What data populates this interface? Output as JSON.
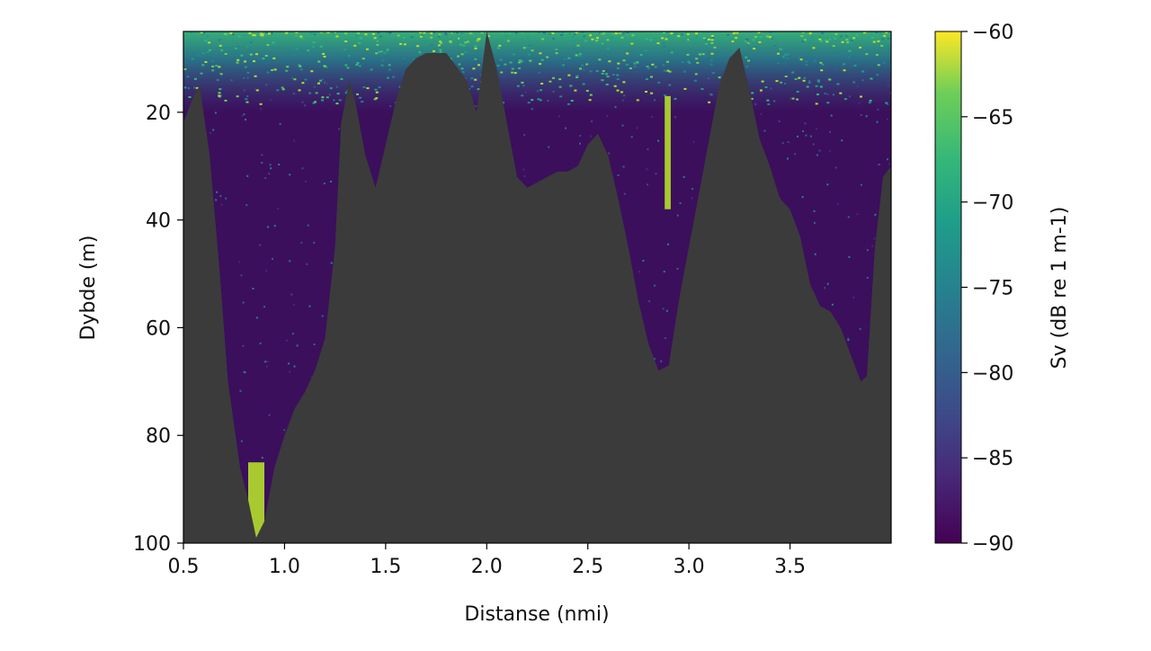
{
  "chart_data": {
    "type": "heatmap",
    "title": "",
    "xlabel": "Distanse (nmi)",
    "ylabel": "Dybde (m)",
    "xlim": [
      0.5,
      4.0
    ],
    "ylim": [
      100,
      5
    ],
    "x_ticks": [
      0.5,
      1.0,
      1.5,
      2.0,
      2.5,
      3.0,
      3.5
    ],
    "x_tick_labels": [
      "0.5",
      "1.0",
      "1.5",
      "2.0",
      "2.5",
      "3.0",
      "3.5"
    ],
    "y_ticks": [
      20,
      40,
      60,
      80,
      100
    ],
    "y_tick_labels": [
      "20",
      "40",
      "60",
      "80",
      "100"
    ],
    "colorbar": {
      "label": "Sv (dB re 1 m-1)",
      "vmin": -90,
      "vmax": -60,
      "ticks": [
        -60,
        -65,
        -70,
        -75,
        -80,
        -85,
        -90
      ],
      "tick_labels": [
        "−60",
        "−65",
        "−70",
        "−75",
        "−80",
        "−85",
        "−90"
      ],
      "colormap": "viridis"
    },
    "seabed_color": "#3b3b3b",
    "seabed_depth_profile": {
      "x": [
        0.5,
        0.55,
        0.58,
        0.63,
        0.68,
        0.72,
        0.78,
        0.82,
        0.86,
        0.9,
        0.95,
        1.0,
        1.05,
        1.1,
        1.15,
        1.2,
        1.25,
        1.28,
        1.32,
        1.35,
        1.4,
        1.45,
        1.5,
        1.55,
        1.6,
        1.65,
        1.7,
        1.8,
        1.9,
        1.95,
        2.0,
        2.05,
        2.1,
        2.15,
        2.2,
        2.25,
        2.3,
        2.35,
        2.4,
        2.45,
        2.5,
        2.55,
        2.6,
        2.65,
        2.7,
        2.75,
        2.8,
        2.85,
        2.9,
        2.95,
        3.0,
        3.05,
        3.1,
        3.15,
        3.2,
        3.25,
        3.3,
        3.35,
        3.4,
        3.45,
        3.5,
        3.55,
        3.6,
        3.65,
        3.7,
        3.75,
        3.8,
        3.85,
        3.88,
        3.92,
        3.96,
        4.0
      ],
      "depth_m": [
        22,
        17,
        15,
        28,
        50,
        70,
        86,
        92,
        99,
        96,
        86,
        80,
        75,
        72,
        68,
        62,
        45,
        22,
        14,
        18,
        28,
        34,
        26,
        18,
        12,
        10,
        9,
        9,
        14,
        20,
        5,
        12,
        22,
        32,
        34,
        33,
        32,
        31,
        31,
        30,
        26,
        24,
        28,
        36,
        45,
        55,
        63,
        68,
        67,
        55,
        45,
        35,
        25,
        15,
        10,
        8,
        16,
        25,
        30,
        36,
        38,
        43,
        52,
        56,
        57,
        60,
        65,
        70,
        69,
        45,
        32,
        30
      ]
    },
    "surface_scattering_depth_m": [
      5,
      18
    ],
    "high_backscatter_regions": [
      {
        "x": [
          0.82,
          0.9
        ],
        "depth_m": [
          85,
          99
        ],
        "sv_db": -62
      },
      {
        "x": [
          2.88,
          2.91
        ],
        "depth_m": [
          17,
          38
        ],
        "sv_db": -60
      }
    ]
  }
}
